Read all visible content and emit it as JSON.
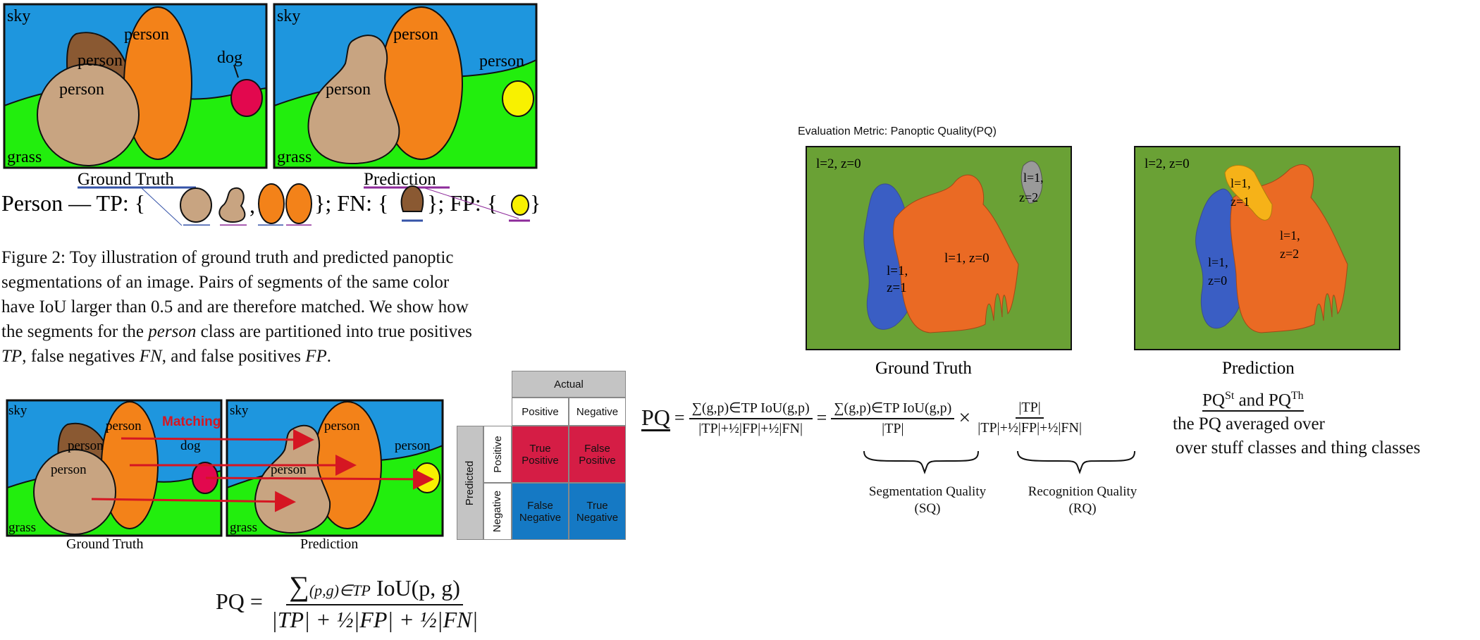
{
  "toy": {
    "labels": {
      "sky": "sky",
      "grass": "grass",
      "person": "person",
      "dog": "dog"
    },
    "gt_title": "Ground Truth",
    "pred_title": "Prediction",
    "legend": {
      "prefix": "Person — TP: {",
      "comma": ",",
      "mid": "}; FN: {",
      "mid2": "}; FP: {",
      "end": "}"
    }
  },
  "caption": {
    "fig": "Figure 2:",
    "line1": "Toy illustration of ground truth and predicted panoptic",
    "line2": "segmentations of an image.  Pairs of segments of the same color",
    "line3": "have IoU larger than 0.5 and are therefore matched. We show how",
    "line4a": "the segments for the ",
    "line4b": "person",
    "line4c": " class are partitioned into true positives",
    "line5a": "TP",
    "line5b": ", false negatives ",
    "line5c": "FN",
    "line5d": ", and false positives ",
    "line5e": "FP",
    "line5f": "."
  },
  "matching": {
    "label": "Matching",
    "gt_title": "Ground Truth",
    "pred_title": "Prediction",
    "accent": "#d51622"
  },
  "confusion": {
    "actual": "Actual",
    "predicted": "Predicted",
    "positive": "Positive",
    "negative": "Negative",
    "tp": "True Positive",
    "fp": "False Positive",
    "fn": "False Negative",
    "tn": "True Negative",
    "colors": {
      "pos": "#d51d45",
      "neg": "#1579c4",
      "header": "#c4c4c4"
    }
  },
  "formula_bottom": {
    "lhs": "PQ =",
    "num_sum": "∑",
    "num_sub": "(p,g)∈TP",
    "num_rest": "IoU(p, g)",
    "den": "|TP| + ½|FP| + ½|FN|"
  },
  "panoptic": {
    "title": "Evaluation Metric: Panoptic Quality(PQ)",
    "gt_label": "Ground Truth",
    "pred_label": "Prediction",
    "gt_bg": "l=2, z=0",
    "gt_blue": "l=1,\nz=1",
    "gt_orange": "l=1, z=0",
    "gt_gray": "l=1,\nz=2",
    "pred_bg": "l=2, z=0",
    "pred_yellow": "l=1,\nz=1",
    "pred_orange": "l=1,\nz=2",
    "pred_blue": "l=1,\nz=0"
  },
  "pq_formula": {
    "lhs": "PQ",
    "eq": "=",
    "num1": "∑(g,p)∈TP IoU(g,p)",
    "den1": "|TP|+½|FP|+½|FN|",
    "num2": "∑(g,p)∈TP IoU(g,p)",
    "den2": "|TP|",
    "times": "×",
    "num3": "|TP|",
    "den3": "|TP|+½|FP|+½|FN|",
    "sq_label": "Segmentation Quality",
    "sq_abbr": "(SQ)",
    "rq_label": "Recognition Quality",
    "rq_abbr": "(RQ)"
  },
  "notes": {
    "line1a": "PQ",
    "line1b": "St",
    "line1c": " and PQ",
    "line1d": "Th",
    "line2": "the PQ averaged over",
    "line3": "over stuff classes and thing classes"
  }
}
